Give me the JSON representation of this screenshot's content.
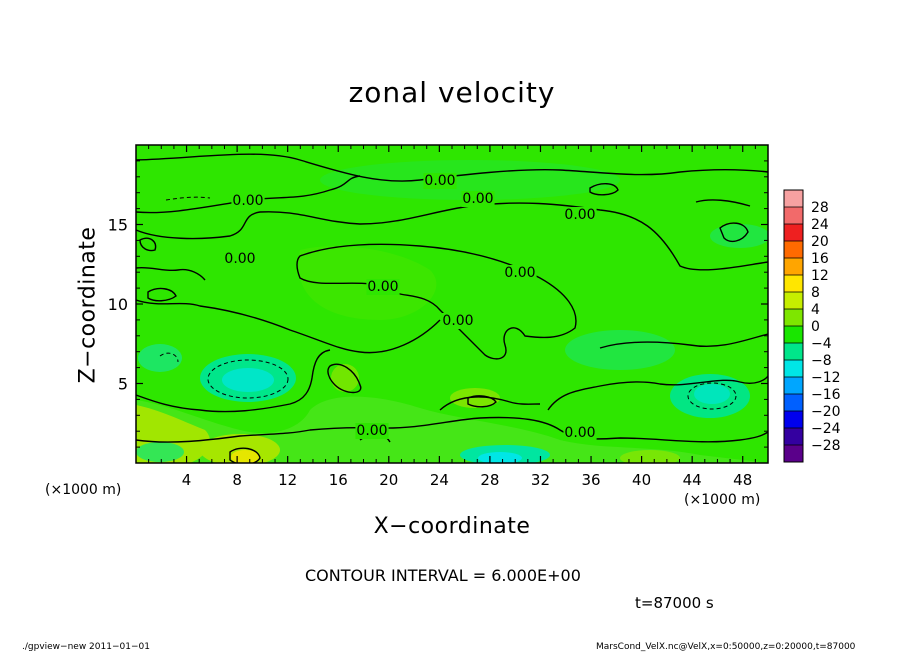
{
  "chart_data": {
    "type": "heatmap",
    "title": "zonal velocity",
    "xlabel": "X−coordinate",
    "ylabel": "Z−coordinate",
    "x_unit": "(×1000 m)",
    "xlim": [
      0,
      50
    ],
    "ylim": [
      0,
      20
    ],
    "x_ticks": [
      4,
      8,
      12,
      16,
      20,
      24,
      28,
      32,
      36,
      40,
      44,
      48
    ],
    "y_ticks": [
      5,
      10,
      15
    ],
    "colorbar": {
      "levels": [
        28,
        24,
        20,
        16,
        12,
        8,
        4,
        0,
        -4,
        -8,
        -12,
        -16,
        -20,
        -24,
        -28
      ],
      "labels": [
        "28",
        "24",
        "20",
        "16",
        "12",
        "8",
        "4",
        "0",
        "−4",
        "−8",
        "−12",
        "−16",
        "−20",
        "−24",
        "−28"
      ],
      "colors": [
        "#f7a1a1",
        "#f26a6a",
        "#ee2020",
        "#ff6a00",
        "#ffa500",
        "#ffe600",
        "#c6ee00",
        "#7ee600",
        "#19e600",
        "#00e68a",
        "#00e6e6",
        "#00a6ff",
        "#0060ff",
        "#0000ee",
        "#3400a0",
        "#5a008a"
      ]
    },
    "contour_labels": [
      "0.00",
      "0.00",
      "0.00",
      "0.00",
      "0.00",
      "0.00",
      "0.00",
      "0.00",
      "0.00",
      "0.00"
    ],
    "contour_interval": "CONTOUR INTERVAL = 6.000E+00"
  },
  "time_label": "t=87000 s",
  "footer": {
    "left": "./gpview−new   2011−01−01",
    "right": "MarsCond_VelX.nc@VelX,x=0:50000,z=0:20000,t=87000"
  }
}
